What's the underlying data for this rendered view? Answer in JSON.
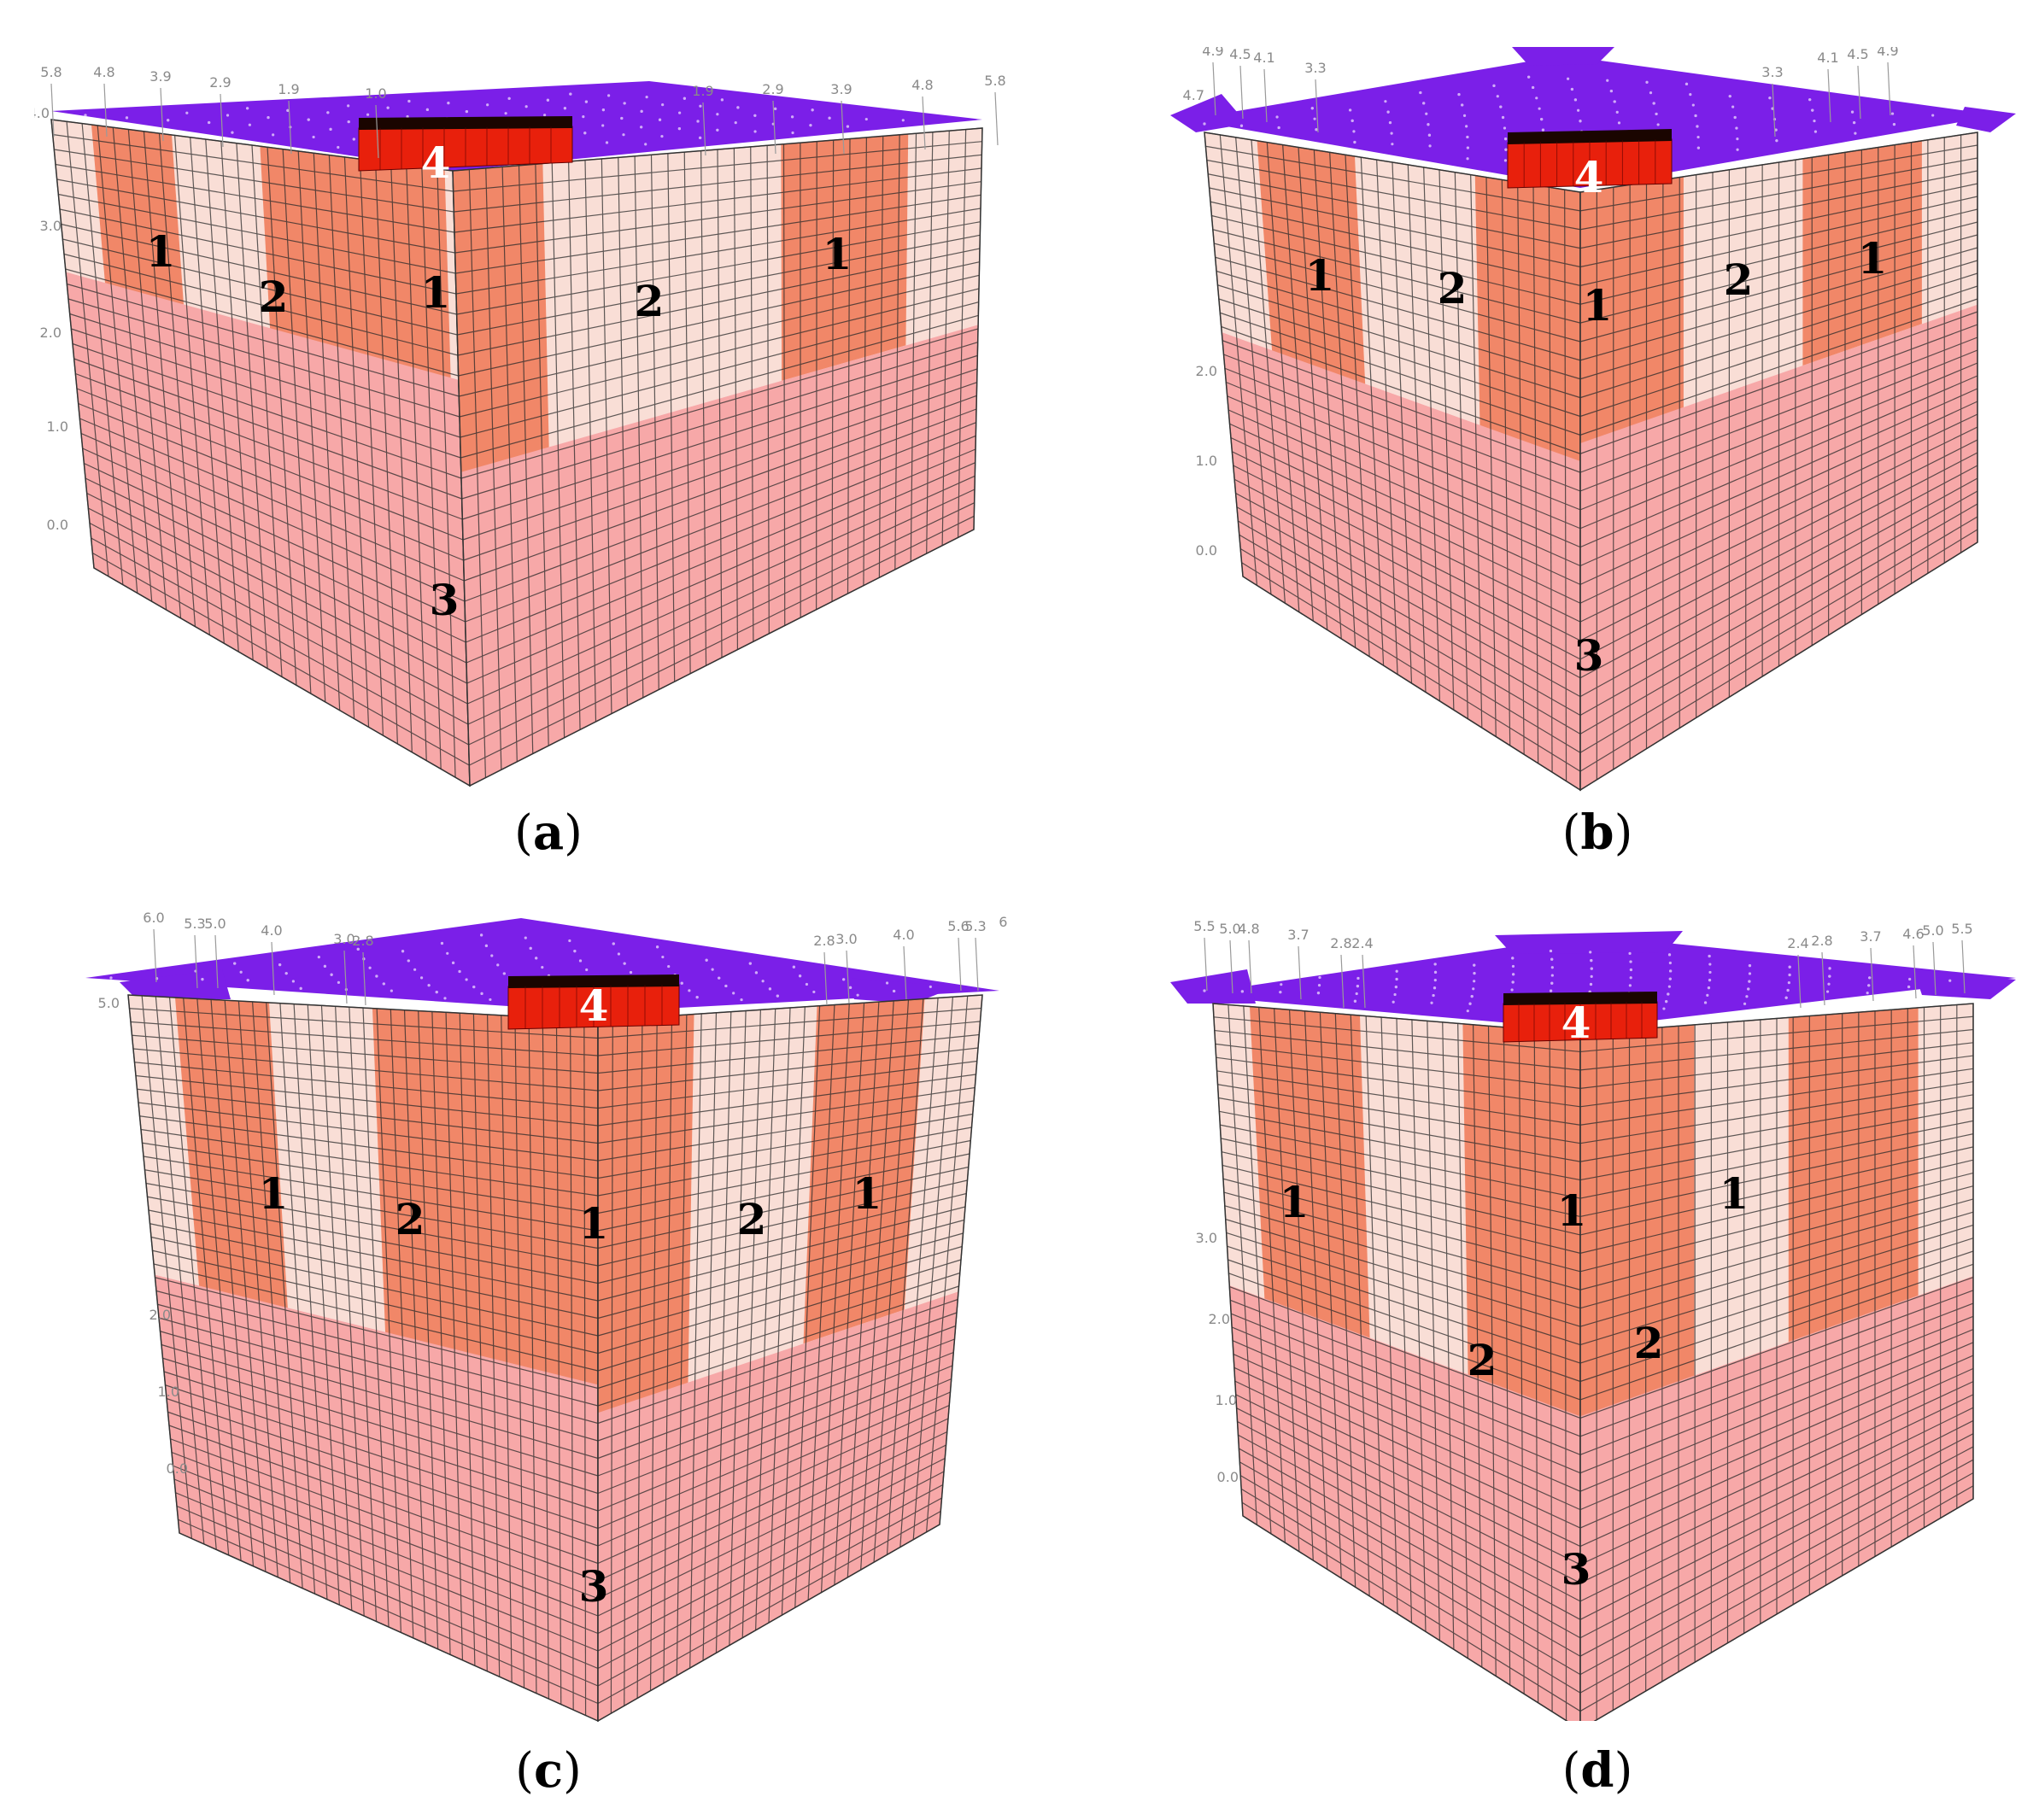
{
  "figure": {
    "panels": [
      {
        "id": "a",
        "caption": "a",
        "region_labels": [
          "1",
          "2",
          "1",
          "2",
          "1",
          "3",
          "4"
        ],
        "axis_ticks_top": [
          "5.8",
          "4.8",
          "3.9",
          "2.9",
          "1.9",
          "1.0",
          "1.9",
          "2.9",
          "3.9",
          "4.8",
          "5.8"
        ],
        "axis_ticks_side": [
          "4.0",
          "3.0",
          "2.0",
          "1.0",
          "0.0"
        ]
      },
      {
        "id": "b",
        "caption": "b",
        "region_labels": [
          "1",
          "2",
          "1",
          "2",
          "1",
          "3",
          "4"
        ],
        "axis_ticks_top": [
          "4.9",
          "4.5",
          "4.1",
          "3.3",
          "3.3",
          "4.1",
          "4.5",
          "4.9"
        ],
        "axis_ticks_side": [
          "4.7",
          "2.0",
          "1.0",
          "0.0"
        ]
      },
      {
        "id": "c",
        "caption": "c",
        "region_labels": [
          "1",
          "2",
          "1",
          "2",
          "1",
          "3",
          "4"
        ],
        "axis_ticks_top": [
          "6.0",
          "5.3",
          "5.0",
          "4.0",
          "3.0",
          "2.8",
          "2.8",
          "3.0",
          "4.0",
          "5.6",
          "5.3",
          "6.0"
        ],
        "axis_ticks_side": [
          "5.0",
          "2.0",
          "1.0",
          "0.0"
        ]
      },
      {
        "id": "d",
        "caption": "d",
        "region_labels": [
          "1",
          "1",
          "1",
          "2",
          "2",
          "3",
          "4"
        ],
        "axis_ticks_top": [
          "5.5",
          "5.0",
          "4.8",
          "3.7",
          "2.8",
          "2.4",
          "2.4",
          "2.8",
          "3.7",
          "4.6",
          "5.0",
          "5.5"
        ],
        "axis_ticks_side": [
          "3.0",
          "2.0",
          "1.0",
          "0.0"
        ]
      }
    ]
  },
  "colors": {
    "top_surface": "#7b1fe8",
    "zone_light": "#f9ded6",
    "zone_salmon": "#f08262",
    "zone_pink": "#f7a8a8",
    "block_red": "#e8200c",
    "grid_line": "#2a2a2a"
  }
}
